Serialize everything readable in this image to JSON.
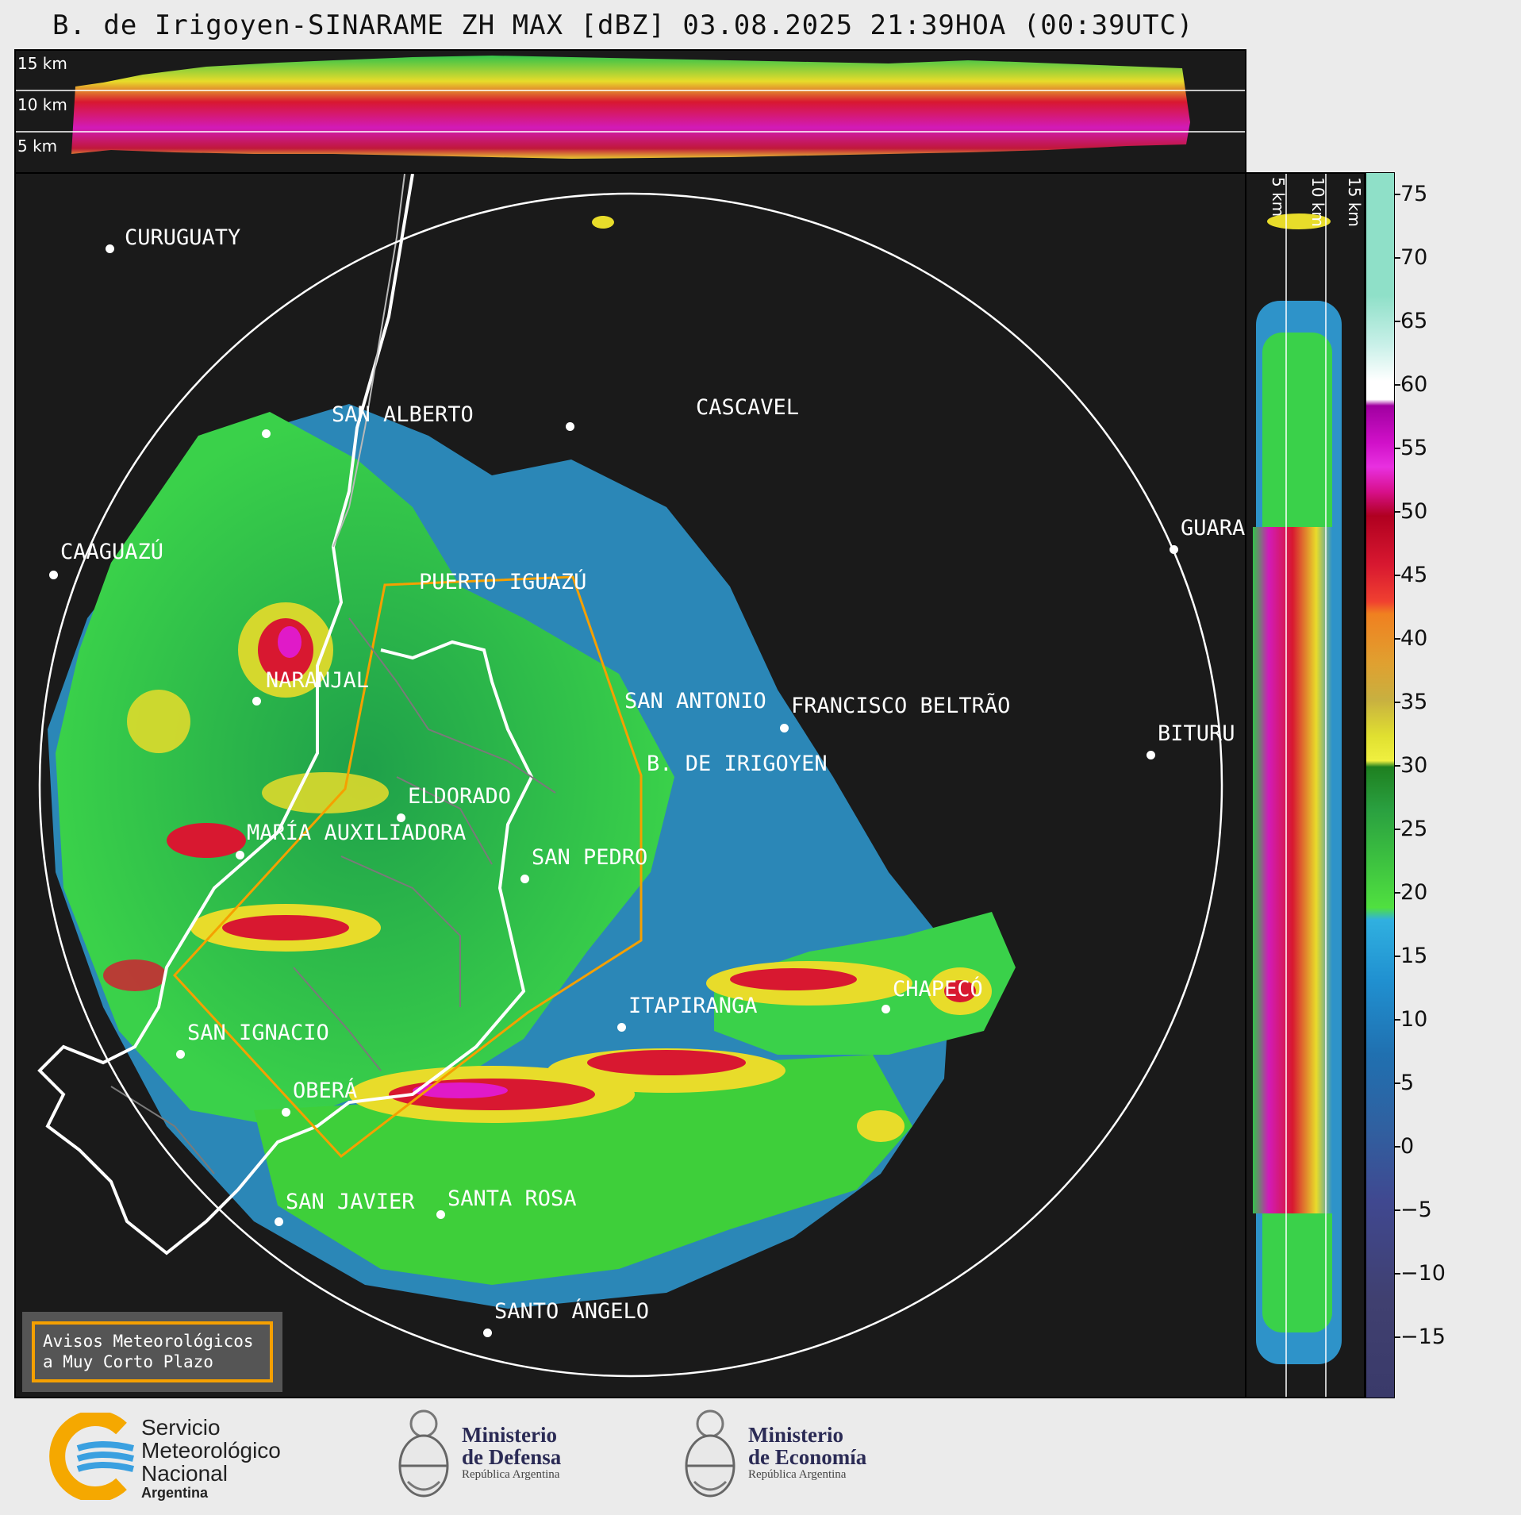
{
  "title": "B. de Irigoyen-SINARAME ZH MAX [dBZ] 03.08.2025 21:39HOA (00:39UTC)",
  "top_panel": {
    "height_labels": [
      "15 km",
      "10 km",
      "5 km"
    ]
  },
  "side_panel": {
    "height_labels": [
      "5 km",
      "10 km",
      "15 km"
    ]
  },
  "colorbar": {
    "ticks": [
      "75",
      "70",
      "65",
      "60",
      "55",
      "50",
      "45",
      "40",
      "35",
      "30",
      "25",
      "20",
      "15",
      "10",
      "5",
      "0",
      "−5",
      "−10",
      "−15"
    ],
    "range_dbz": [
      -20,
      77
    ]
  },
  "cities": [
    {
      "name": "CURUGUATY"
    },
    {
      "name": "SAN ALBERTO"
    },
    {
      "name": "CASCAVEL"
    },
    {
      "name": "CAAGUAZÚ"
    },
    {
      "name": "GUARA"
    },
    {
      "name": "PUERTO IGUAZÚ"
    },
    {
      "name": "NARANJAL"
    },
    {
      "name": "SAN ANTONIO"
    },
    {
      "name": "FRANCISCO BELTRÃO"
    },
    {
      "name": "BITURU"
    },
    {
      "name": "B. DE IRIGOYEN"
    },
    {
      "name": "ELDORADO"
    },
    {
      "name": "MARÍA AUXILIADORA"
    },
    {
      "name": "SAN PEDRO"
    },
    {
      "name": "CHAPECÓ"
    },
    {
      "name": "ITAPIRANGA"
    },
    {
      "name": "SAN IGNACIO"
    },
    {
      "name": "OBERÁ"
    },
    {
      "name": "SAN JAVIER"
    },
    {
      "name": "SANTA ROSA"
    },
    {
      "name": "SANTO ÁNGELO"
    }
  ],
  "warning_box": {
    "text": "Avisos Meteorológicos\na Muy Corto Plazo",
    "border_color": "#f5a000"
  },
  "logos": {
    "smn": {
      "line1": "Servicio",
      "line2": "Meteorológico",
      "line3": "Nacional",
      "line4": "Argentina"
    },
    "defensa": {
      "line1": "Ministerio",
      "line2": "de Defensa",
      "sub": "República Argentina"
    },
    "economia": {
      "line1": "Ministerio",
      "line2": "de Economía",
      "sub": "República Argentina"
    }
  },
  "colors": {
    "background": "#1a1a1a",
    "range_ring": "#ffffff",
    "warning_polygon": "#f5a000",
    "border": "#ffffff"
  }
}
